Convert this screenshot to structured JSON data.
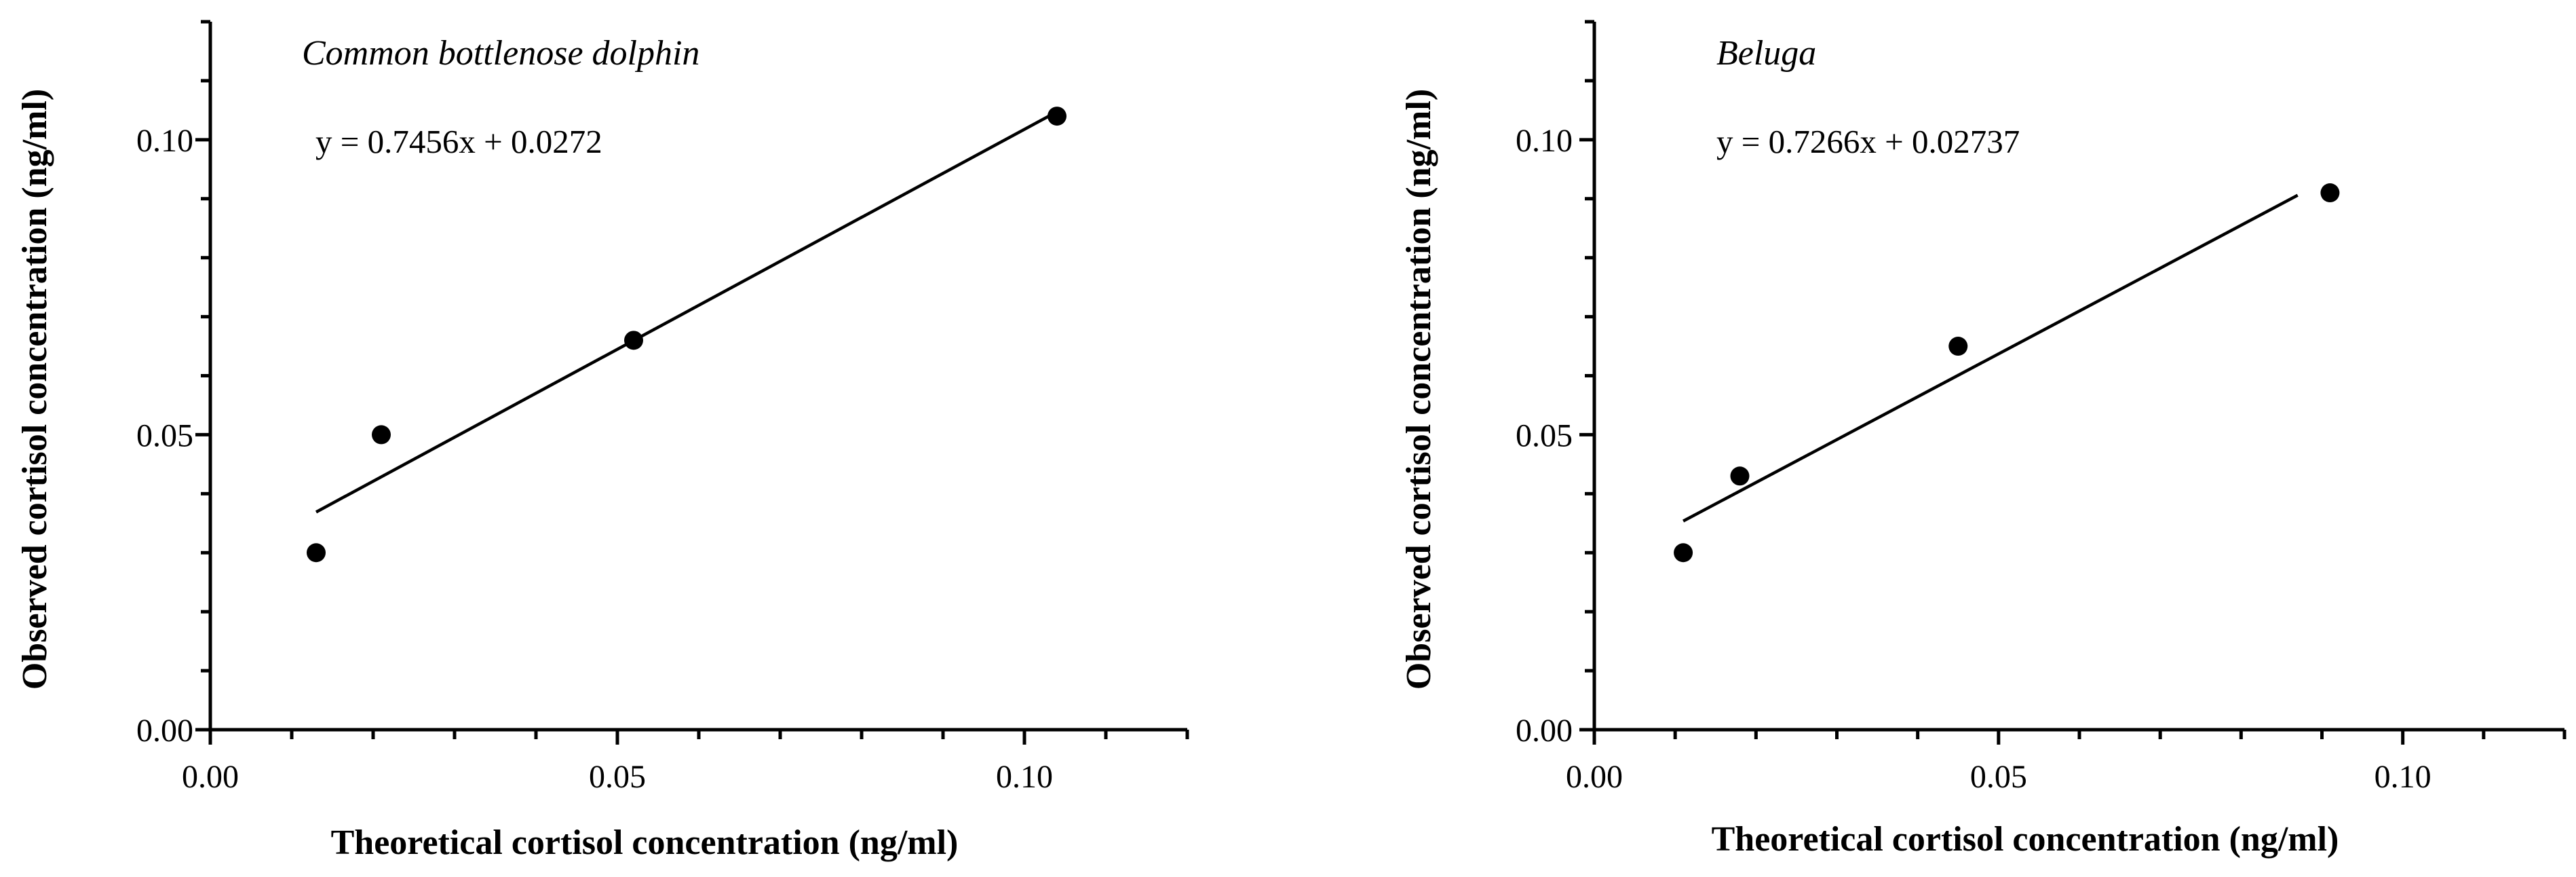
{
  "chart_data": [
    {
      "type": "scatter",
      "title": "Common bottlenose dolphin",
      "equation": "y = 0.7456x + 0.0272",
      "xlabel": "Theoretical cortisol concentration (ng/ml)",
      "ylabel": "Observed cortisol concentration (ng/ml)",
      "xlim": [
        0,
        0.12
      ],
      "ylim": [
        0,
        0.12
      ],
      "x_ticks": [
        "0.00",
        "0.05",
        "0.10"
      ],
      "y_ticks": [
        "0.00",
        "0.05",
        "0.10"
      ],
      "points": [
        {
          "x": 0.013,
          "y": 0.03
        },
        {
          "x": 0.021,
          "y": 0.05
        },
        {
          "x": 0.052,
          "y": 0.066
        },
        {
          "x": 0.104,
          "y": 0.104
        }
      ],
      "fit": {
        "slope": 0.7456,
        "intercept": 0.0272,
        "x_range": [
          0.013,
          0.104
        ]
      }
    },
    {
      "type": "scatter",
      "title": "Beluga",
      "equation": "y = 0.7266x + 0.02737",
      "xlabel": "Theoretical cortisol concentration (ng/ml)",
      "ylabel": "Observed cortisol concentration (ng/ml)",
      "xlim": [
        0,
        0.12
      ],
      "ylim": [
        0,
        0.12
      ],
      "x_ticks": [
        "0.00",
        "0.05",
        "0.10"
      ],
      "y_ticks": [
        "0.00",
        "0.05",
        "0.10"
      ],
      "points": [
        {
          "x": 0.011,
          "y": 0.03
        },
        {
          "x": 0.018,
          "y": 0.043
        },
        {
          "x": 0.045,
          "y": 0.065
        },
        {
          "x": 0.091,
          "y": 0.091
        }
      ],
      "fit": {
        "slope": 0.7266,
        "intercept": 0.02737,
        "x_range": [
          0.011,
          0.087
        ]
      }
    }
  ]
}
